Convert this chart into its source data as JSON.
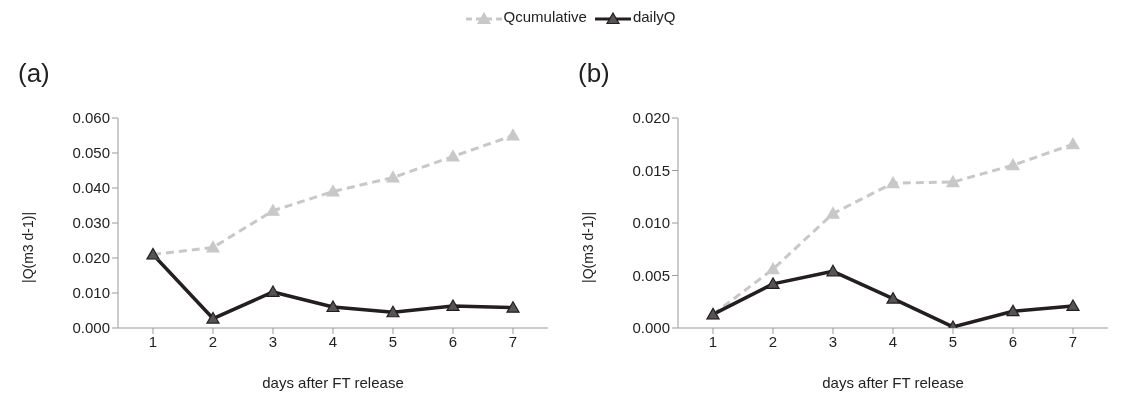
{
  "chart_data": [
    {
      "type": "line",
      "title": "(a)",
      "xlabel": "days after FT release",
      "ylabel": "|Q(m3 d-1)|",
      "categories": [
        "1",
        "2",
        "3",
        "4",
        "5",
        "6",
        "7"
      ],
      "ylim": [
        0,
        0.06
      ],
      "yticks": [
        {
          "value": 0,
          "label": "0.000"
        },
        {
          "value": 0.01,
          "label": "0.010"
        },
        {
          "value": 0.02,
          "label": "0.020"
        },
        {
          "value": 0.03,
          "label": "0.030"
        },
        {
          "value": 0.04,
          "label": "0.040"
        },
        {
          "value": 0.05,
          "label": "0.050"
        },
        {
          "value": 0.06,
          "label": "0.060"
        }
      ],
      "grid": false,
      "legend": "top",
      "marker": "triangle",
      "series": [
        {
          "name": "Qcumulative",
          "color": "#c8c8c8",
          "line_style": "dashed",
          "values": [
            0.021,
            0.023,
            0.0335,
            0.039,
            0.043,
            0.049,
            0.055
          ]
        },
        {
          "name": "dailyQ",
          "color": "#231f20",
          "line_style": "solid",
          "values": [
            0.021,
            0.0027,
            0.0103,
            0.006,
            0.0045,
            0.0063,
            0.0058
          ]
        }
      ]
    },
    {
      "type": "line",
      "title": "(b)",
      "xlabel": "days after FT release",
      "ylabel": "|Q(m3 d-1)|",
      "categories": [
        "1",
        "2",
        "3",
        "4",
        "5",
        "6",
        "7"
      ],
      "ylim": [
        0,
        0.02
      ],
      "yticks": [
        {
          "value": 0,
          "label": "0.000"
        },
        {
          "value": 0.005,
          "label": "0.005"
        },
        {
          "value": 0.01,
          "label": "0.010"
        },
        {
          "value": 0.015,
          "label": "0.015"
        },
        {
          "value": 0.02,
          "label": "0.020"
        }
      ],
      "grid": false,
      "marker": "triangle",
      "series": [
        {
          "color": "#c8c8c8",
          "line_style": "dashed",
          "values": [
            0.0013,
            0.0056,
            0.0109,
            0.0138,
            0.0139,
            0.0155,
            0.0175
          ]
        },
        {
          "color": "#231f20",
          "line_style": "solid",
          "values": [
            0.0013,
            0.0042,
            0.0054,
            0.0028,
            0.0001,
            0.0016,
            0.0021
          ]
        }
      ]
    }
  ]
}
